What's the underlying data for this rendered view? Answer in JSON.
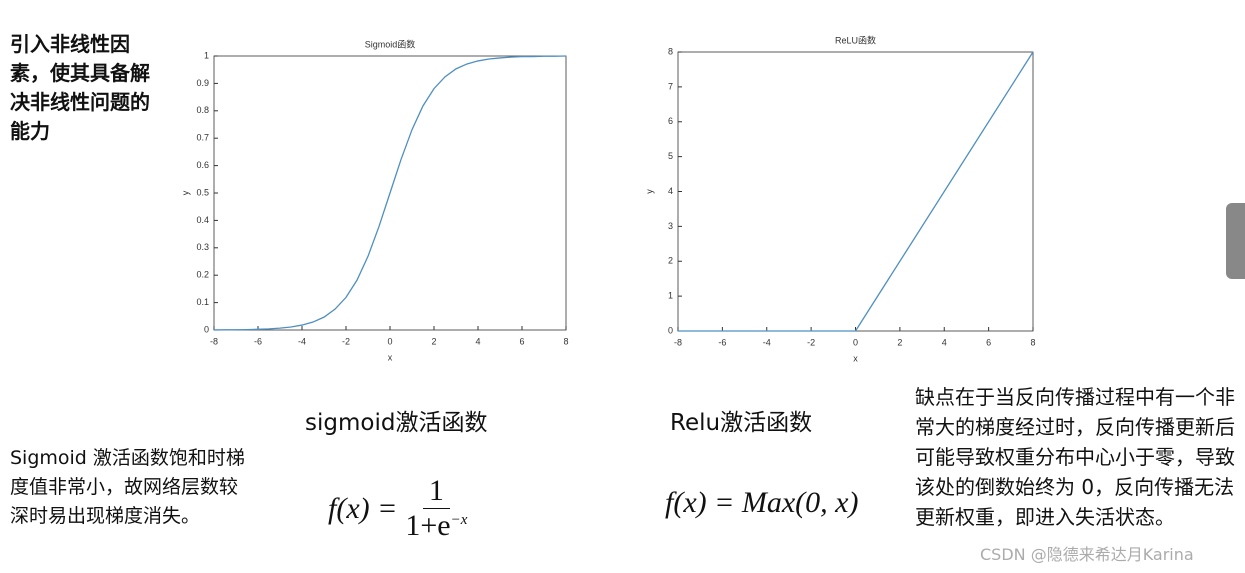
{
  "intro": "引入非线性因素，使其具备解决非线性问题的能力",
  "chart_data": [
    {
      "type": "line",
      "title": "Sigmoid函数",
      "x_label": "x",
      "y_label": "y",
      "xlim": [
        -8,
        8
      ],
      "xticks": [
        -8,
        -6,
        -4,
        -2,
        0,
        2,
        4,
        6,
        8
      ],
      "ylim": [
        0,
        1
      ],
      "yticks": [
        0,
        0.1,
        0.2,
        0.3,
        0.4,
        0.5,
        0.6,
        0.7,
        0.8,
        0.9,
        1
      ],
      "series": [
        {
          "color": "#4f8fc0",
          "x": [
            -8,
            -7.5,
            -7,
            -6.5,
            -6,
            -5.5,
            -5,
            -4.5,
            -4,
            -3.5,
            -3,
            -2.5,
            -2,
            -1.5,
            -1,
            -0.5,
            0,
            0.5,
            1,
            1.5,
            2,
            2.5,
            3,
            3.5,
            4,
            4.5,
            5,
            5.5,
            6,
            6.5,
            7,
            7.5,
            8
          ],
          "values": [
            0.0003,
            0.0006,
            0.0009,
            0.0015,
            0.0025,
            0.004,
            0.0067,
            0.011,
            0.018,
            0.029,
            0.047,
            0.076,
            0.119,
            0.182,
            0.269,
            0.378,
            0.5,
            0.622,
            0.731,
            0.818,
            0.881,
            0.924,
            0.953,
            0.971,
            0.982,
            0.989,
            0.993,
            0.996,
            0.998,
            0.998,
            0.999,
            0.999,
            1.0
          ]
        }
      ]
    },
    {
      "type": "line",
      "title": "ReLU函数",
      "x_label": "x",
      "y_label": "y",
      "xlim": [
        -8,
        8
      ],
      "xticks": [
        -8,
        -6,
        -4,
        -2,
        0,
        2,
        4,
        6,
        8
      ],
      "ylim": [
        0,
        8
      ],
      "yticks": [
        0,
        1,
        2,
        3,
        4,
        5,
        6,
        7,
        8
      ],
      "series": [
        {
          "color": "#4f8fc0",
          "x": [
            -8,
            0,
            8
          ],
          "values": [
            0,
            0,
            8
          ]
        }
      ]
    }
  ],
  "captions": [
    "sigmoid激活函数",
    "Relu激活函数"
  ],
  "sigmoid_formula": {
    "lhs": "f(x) =",
    "numerator": "1",
    "denominator": "1+e",
    "exponent": "−x"
  },
  "relu_formula": "f(x) = Max(0, x)",
  "sigmoid_note": "Sigmoid 激活函数饱和时梯度值非常小，故网络层数较深时易出现梯度消失。",
  "relu_note": "缺点在于当反向传播过程中有一个非常大的梯度经过时，反向传播更新后可能导致权重分布中心小于零，导致该处的倒数始终为 0，反向传播无法更新权重，即进入失活状态。",
  "watermark": "CSDN @隐德来希达月Karina"
}
